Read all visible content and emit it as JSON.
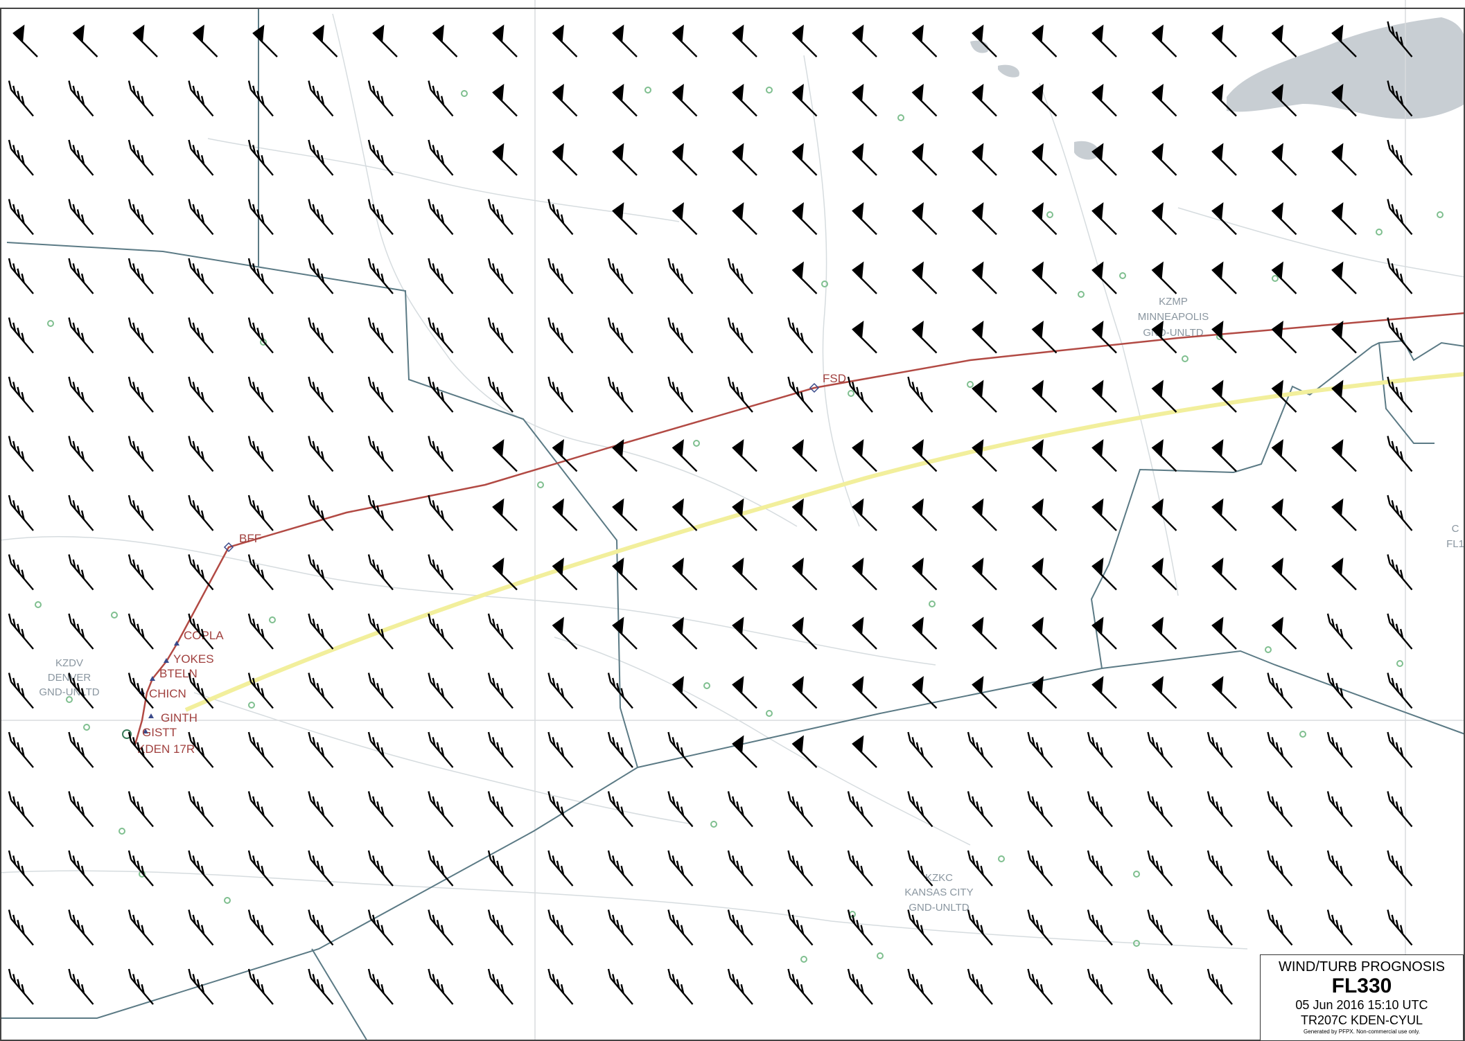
{
  "legend": {
    "title": "WIND/TURB PROGNOSIS",
    "level": "FL330",
    "timestamp": "05 Jun 2016 15:10 UTC",
    "route": "TR207C KDEN-CYUL",
    "footer": "Generated by PFPX. Non-commercial use only."
  },
  "waypoints": [
    "BFF",
    "COPLA",
    "YOKES",
    "BTELN",
    "CHICN",
    "GINTH",
    "GISTT",
    "KDEN 17R",
    "FSD"
  ],
  "fir_regions": {
    "denver": [
      "KZDV",
      "DENVER",
      "GND-UNLTD"
    ],
    "minneapolis": [
      "KZMP",
      "MINNEAPOLIS",
      "GND-UNLTD"
    ],
    "kansas_city": [
      "KZKC",
      "KANSAS CITY",
      "GND-UNLTD"
    ],
    "edge": [
      "C",
      "FL1"
    ]
  },
  "wind_field": {
    "rows": 17,
    "cols": 24,
    "pennant_cells": [
      [
        0,
        0
      ],
      [
        0,
        1
      ],
      [
        0,
        2
      ],
      [
        0,
        3
      ],
      [
        0,
        4
      ],
      [
        0,
        5
      ],
      [
        0,
        6
      ],
      [
        0,
        7
      ],
      [
        0,
        8
      ],
      [
        0,
        9
      ],
      [
        0,
        10
      ],
      [
        0,
        11
      ],
      [
        0,
        12
      ],
      [
        0,
        13
      ],
      [
        0,
        14
      ],
      [
        0,
        15
      ],
      [
        0,
        16
      ],
      [
        0,
        17
      ],
      [
        0,
        18
      ],
      [
        0,
        19
      ],
      [
        0,
        20
      ],
      [
        0,
        21
      ],
      [
        0,
        22
      ],
      [
        1,
        8
      ],
      [
        1,
        9
      ],
      [
        1,
        10
      ],
      [
        1,
        11
      ],
      [
        1,
        12
      ],
      [
        1,
        13
      ],
      [
        1,
        14
      ],
      [
        1,
        15
      ],
      [
        1,
        16
      ],
      [
        1,
        17
      ],
      [
        1,
        18
      ],
      [
        1,
        19
      ],
      [
        1,
        20
      ],
      [
        1,
        21
      ],
      [
        1,
        22
      ],
      [
        2,
        8
      ],
      [
        2,
        9
      ],
      [
        2,
        10
      ],
      [
        2,
        11
      ],
      [
        2,
        12
      ],
      [
        2,
        13
      ],
      [
        2,
        14
      ],
      [
        2,
        15
      ],
      [
        2,
        16
      ],
      [
        2,
        17
      ],
      [
        2,
        18
      ],
      [
        2,
        19
      ],
      [
        2,
        20
      ],
      [
        2,
        21
      ],
      [
        2,
        22
      ],
      [
        3,
        10
      ],
      [
        3,
        11
      ],
      [
        3,
        12
      ],
      [
        3,
        13
      ],
      [
        3,
        14
      ],
      [
        3,
        15
      ],
      [
        3,
        16
      ],
      [
        3,
        17
      ],
      [
        3,
        18
      ],
      [
        3,
        19
      ],
      [
        3,
        20
      ],
      [
        3,
        21
      ],
      [
        3,
        22
      ],
      [
        4,
        13
      ],
      [
        4,
        14
      ],
      [
        4,
        15
      ],
      [
        4,
        16
      ],
      [
        4,
        17
      ],
      [
        4,
        18
      ],
      [
        4,
        19
      ],
      [
        4,
        20
      ],
      [
        4,
        21
      ],
      [
        4,
        22
      ],
      [
        5,
        14
      ],
      [
        5,
        15
      ],
      [
        5,
        16
      ],
      [
        5,
        17
      ],
      [
        5,
        18
      ],
      [
        5,
        19
      ],
      [
        5,
        20
      ],
      [
        5,
        21
      ],
      [
        5,
        22
      ],
      [
        6,
        16
      ],
      [
        6,
        17
      ],
      [
        6,
        18
      ],
      [
        6,
        19
      ],
      [
        6,
        20
      ],
      [
        6,
        21
      ],
      [
        6,
        22
      ],
      [
        7,
        8
      ],
      [
        7,
        9
      ],
      [
        7,
        10
      ],
      [
        7,
        11
      ],
      [
        7,
        12
      ],
      [
        7,
        13
      ],
      [
        7,
        14
      ],
      [
        7,
        15
      ],
      [
        7,
        16
      ],
      [
        7,
        17
      ],
      [
        7,
        18
      ],
      [
        7,
        19
      ],
      [
        7,
        20
      ],
      [
        7,
        21
      ],
      [
        7,
        22
      ],
      [
        8,
        8
      ],
      [
        8,
        9
      ],
      [
        8,
        10
      ],
      [
        8,
        11
      ],
      [
        8,
        12
      ],
      [
        8,
        13
      ],
      [
        8,
        14
      ],
      [
        8,
        15
      ],
      [
        8,
        16
      ],
      [
        8,
        17
      ],
      [
        8,
        18
      ],
      [
        8,
        19
      ],
      [
        8,
        20
      ],
      [
        8,
        21
      ],
      [
        8,
        22
      ],
      [
        9,
        8
      ],
      [
        9,
        9
      ],
      [
        9,
        10
      ],
      [
        9,
        11
      ],
      [
        9,
        12
      ],
      [
        9,
        13
      ],
      [
        9,
        14
      ],
      [
        9,
        15
      ],
      [
        9,
        16
      ],
      [
        9,
        17
      ],
      [
        9,
        18
      ],
      [
        9,
        19
      ],
      [
        9,
        20
      ],
      [
        9,
        21
      ],
      [
        9,
        22
      ],
      [
        10,
        9
      ],
      [
        10,
        10
      ],
      [
        10,
        11
      ],
      [
        10,
        12
      ],
      [
        10,
        13
      ],
      [
        10,
        14
      ],
      [
        10,
        15
      ],
      [
        10,
        16
      ],
      [
        10,
        17
      ],
      [
        10,
        18
      ],
      [
        10,
        19
      ],
      [
        10,
        20
      ],
      [
        10,
        21
      ],
      [
        11,
        11
      ],
      [
        11,
        12
      ],
      [
        11,
        13
      ],
      [
        11,
        14
      ],
      [
        11,
        15
      ],
      [
        11,
        16
      ],
      [
        11,
        17
      ],
      [
        11,
        18
      ],
      [
        11,
        19
      ],
      [
        11,
        20
      ],
      [
        12,
        12
      ],
      [
        12,
        13
      ],
      [
        12,
        14
      ]
    ]
  },
  "colors": {
    "route_primary": "#b24a44",
    "route_alternate": "#f2ef9c",
    "boundary": "#5b7a85",
    "water": "#c8ced3",
    "barb": "#000000",
    "airport": "#7fbf8f"
  }
}
